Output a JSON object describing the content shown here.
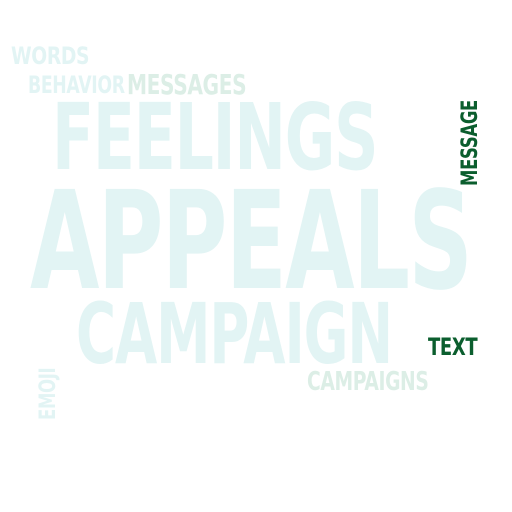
{
  "colors": {
    "faint_teal": "#e2f4f4",
    "faint_green": "#dceee6",
    "dark_green": "#0b5e2e"
  },
  "words": [
    {
      "id": "words",
      "text": "WORDS",
      "color": "#e2f4f4"
    },
    {
      "id": "behavior",
      "text": "BEHAVIOR",
      "color": "#e2f4f4"
    },
    {
      "id": "messages",
      "text": "MESSAGES",
      "color": "#dceee6"
    },
    {
      "id": "feelings",
      "text": "FEELINGS",
      "color": "#e2f4f4"
    },
    {
      "id": "message",
      "text": "MESSAGE",
      "color": "#0b5e2e"
    },
    {
      "id": "appeals",
      "text": "APPEALS",
      "color": "#e2f4f4"
    },
    {
      "id": "campaign",
      "text": "CAMPAIGN",
      "color": "#e2f4f4"
    },
    {
      "id": "text",
      "text": "TEXT",
      "color": "#0b5e2e"
    },
    {
      "id": "emoji",
      "text": "EMOJI",
      "color": "#e2f4f4"
    },
    {
      "id": "campaigns",
      "text": "CAMPAIGNS",
      "color": "#dceee6"
    }
  ]
}
